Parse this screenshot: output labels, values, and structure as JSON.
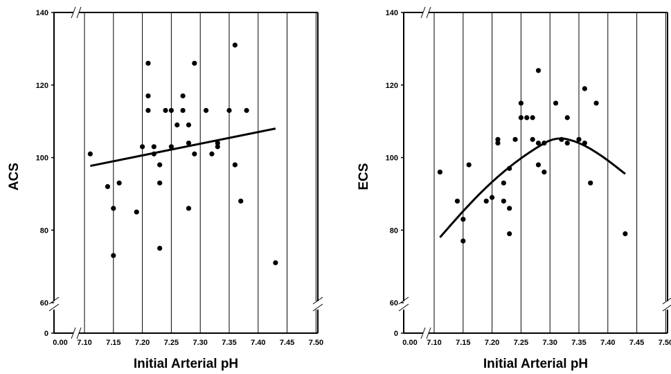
{
  "chart_data": [
    {
      "type": "scatter",
      "xlabel": "Initial Arterial pH",
      "ylabel": "ACS",
      "x_ticks": [
        "0.00",
        "7.10",
        "7.15",
        "7.20",
        "7.25",
        "7.30",
        "7.35",
        "7.40",
        "7.45",
        "7.50"
      ],
      "y_ticks": [
        "0",
        "60",
        "80",
        "100",
        "120",
        "140"
      ],
      "xlim": [
        7.1,
        7.5
      ],
      "ylim": [
        60,
        140
      ],
      "grid": "vertical",
      "axis_breaks": true,
      "points": [
        [
          7.11,
          101
        ],
        [
          7.14,
          92
        ],
        [
          7.15,
          86
        ],
        [
          7.15,
          73
        ],
        [
          7.16,
          93
        ],
        [
          7.19,
          85
        ],
        [
          7.2,
          103
        ],
        [
          7.21,
          126
        ],
        [
          7.21,
          117
        ],
        [
          7.21,
          113
        ],
        [
          7.22,
          103
        ],
        [
          7.22,
          101
        ],
        [
          7.23,
          98
        ],
        [
          7.23,
          93
        ],
        [
          7.23,
          75
        ],
        [
          7.24,
          113
        ],
        [
          7.25,
          113
        ],
        [
          7.25,
          103
        ],
        [
          7.26,
          109
        ],
        [
          7.27,
          117
        ],
        [
          7.27,
          113
        ],
        [
          7.28,
          109
        ],
        [
          7.28,
          104
        ],
        [
          7.28,
          86
        ],
        [
          7.29,
          126
        ],
        [
          7.29,
          101
        ],
        [
          7.31,
          113
        ],
        [
          7.32,
          101
        ],
        [
          7.33,
          104
        ],
        [
          7.33,
          103
        ],
        [
          7.35,
          113
        ],
        [
          7.36,
          131
        ],
        [
          7.36,
          98
        ],
        [
          7.37,
          88
        ],
        [
          7.38,
          113
        ],
        [
          7.43,
          71
        ]
      ],
      "fit": {
        "type": "linear",
        "x": [
          7.11,
          7.43
        ],
        "y": [
          97.7,
          108
        ]
      }
    },
    {
      "type": "scatter",
      "xlabel": "Initial Arterial pH",
      "ylabel": "ECS",
      "x_ticks": [
        "0.00",
        "7.10",
        "7.15",
        "7.20",
        "7.25",
        "7.30",
        "7.35",
        "7.40",
        "7.45",
        "7.50"
      ],
      "y_ticks": [
        "0",
        "60",
        "80",
        "100",
        "120",
        "140"
      ],
      "xlim": [
        7.1,
        7.5
      ],
      "ylim": [
        60,
        140
      ],
      "grid": "vertical",
      "axis_breaks": true,
      "points": [
        [
          7.11,
          96
        ],
        [
          7.14,
          88
        ],
        [
          7.15,
          83
        ],
        [
          7.15,
          77
        ],
        [
          7.16,
          98
        ],
        [
          7.19,
          88
        ],
        [
          7.2,
          89
        ],
        [
          7.21,
          105
        ],
        [
          7.21,
          104
        ],
        [
          7.22,
          93
        ],
        [
          7.22,
          88
        ],
        [
          7.23,
          97
        ],
        [
          7.23,
          86
        ],
        [
          7.23,
          79
        ],
        [
          7.24,
          105
        ],
        [
          7.25,
          115
        ],
        [
          7.25,
          111
        ],
        [
          7.26,
          111
        ],
        [
          7.27,
          111
        ],
        [
          7.27,
          105
        ],
        [
          7.28,
          124
        ],
        [
          7.28,
          104
        ],
        [
          7.28,
          98
        ],
        [
          7.29,
          104
        ],
        [
          7.29,
          96
        ],
        [
          7.31,
          115
        ],
        [
          7.32,
          105
        ],
        [
          7.33,
          111
        ],
        [
          7.33,
          104
        ],
        [
          7.35,
          105
        ],
        [
          7.36,
          119
        ],
        [
          7.36,
          104
        ],
        [
          7.37,
          93
        ],
        [
          7.38,
          115
        ],
        [
          7.43,
          79
        ]
      ],
      "fit": {
        "type": "quadratic",
        "x": [
          7.11,
          7.15,
          7.19,
          7.23,
          7.27,
          7.31,
          7.35,
          7.39,
          7.43
        ],
        "y": [
          78,
          85.3,
          91.9,
          97.5,
          102.1,
          105.8,
          104.3,
          100.5,
          95.5
        ]
      }
    }
  ]
}
